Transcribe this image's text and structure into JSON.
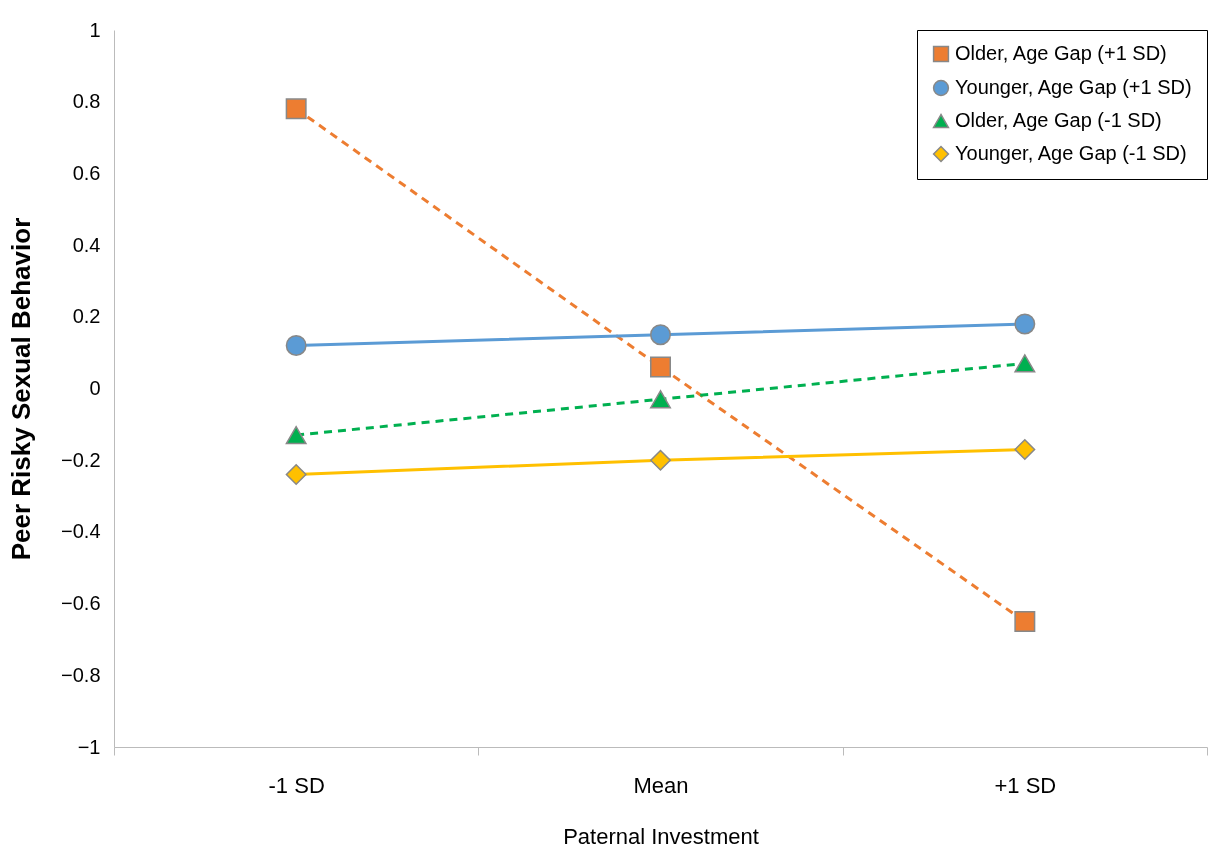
{
  "chart_data": {
    "type": "line",
    "xlabel": "Paternal Investment",
    "ylabel": "Peer Risky Sexual Behavior",
    "categories": [
      "-1 SD",
      "Mean",
      "+1 SD"
    ],
    "ylim": [
      -1,
      1
    ],
    "yticks": [
      -1,
      -0.8,
      -0.6,
      -0.4,
      -0.2,
      0,
      0.2,
      0.4,
      0.6,
      0.8,
      1
    ],
    "grid": false,
    "legend": "top right",
    "series": [
      {
        "name": "Older, Age Gap (+1 SD)",
        "color": "#ed7d31",
        "marker": "square",
        "line_style": "dashed",
        "values": [
          0.78,
          0.06,
          -0.65
        ]
      },
      {
        "name": "Younger, Age Gap (+1 SD)",
        "color": "#5b9bd5",
        "marker": "circle",
        "line_style": "solid",
        "values": [
          0.12,
          0.15,
          0.18
        ]
      },
      {
        "name": "Older, Age Gap (-1 SD)",
        "color": "#00b050",
        "marker": "triangle",
        "line_style": "dashed",
        "values": [
          -0.13,
          -0.03,
          0.07
        ]
      },
      {
        "name": "Younger, Age Gap (-1 SD)",
        "color": "#ffc000",
        "marker": "diamond",
        "line_style": "solid",
        "values": [
          -0.24,
          -0.2,
          -0.17
        ]
      }
    ]
  }
}
